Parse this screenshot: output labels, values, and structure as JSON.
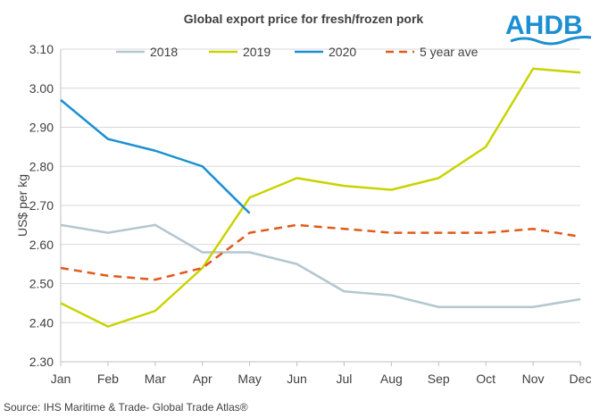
{
  "logo_text": "AHDB",
  "source": "Source: IHS Maritime & Trade- Global Trade  Atlas®",
  "chart_data": {
    "type": "line",
    "title": "Global export price for fresh/frozen pork",
    "xlabel": "",
    "ylabel": "US$ per kg",
    "ylim": [
      2.3,
      3.1
    ],
    "yticks": [
      "2.30",
      "2.40",
      "2.50",
      "2.60",
      "2.70",
      "2.80",
      "2.90",
      "3.00",
      "3.10"
    ],
    "categories": [
      "Jan",
      "Feb",
      "Mar",
      "Apr",
      "May",
      "Jun",
      "Jul",
      "Aug",
      "Sep",
      "Oct",
      "Nov",
      "Dec"
    ],
    "grid": true,
    "legend_position": "top",
    "series": [
      {
        "name": "2018",
        "color": "#b4c7cf",
        "dashed": false,
        "values": [
          2.65,
          2.63,
          2.65,
          2.58,
          2.58,
          2.55,
          2.48,
          2.47,
          2.44,
          2.44,
          2.44,
          2.46
        ]
      },
      {
        "name": "2019",
        "color": "#c8d400",
        "dashed": false,
        "values": [
          2.45,
          2.39,
          2.43,
          2.54,
          2.72,
          2.77,
          2.75,
          2.74,
          2.77,
          2.85,
          3.05,
          3.04
        ]
      },
      {
        "name": "2020",
        "color": "#1b8fd2",
        "dashed": false,
        "values": [
          2.97,
          2.87,
          2.84,
          2.8,
          2.68,
          null,
          null,
          null,
          null,
          null,
          null,
          null
        ]
      },
      {
        "name": "5 year ave",
        "color": "#e05a1b",
        "dashed": true,
        "values": [
          2.54,
          2.52,
          2.51,
          2.54,
          2.63,
          2.65,
          2.64,
          2.63,
          2.63,
          2.63,
          2.64,
          2.62
        ]
      }
    ]
  }
}
